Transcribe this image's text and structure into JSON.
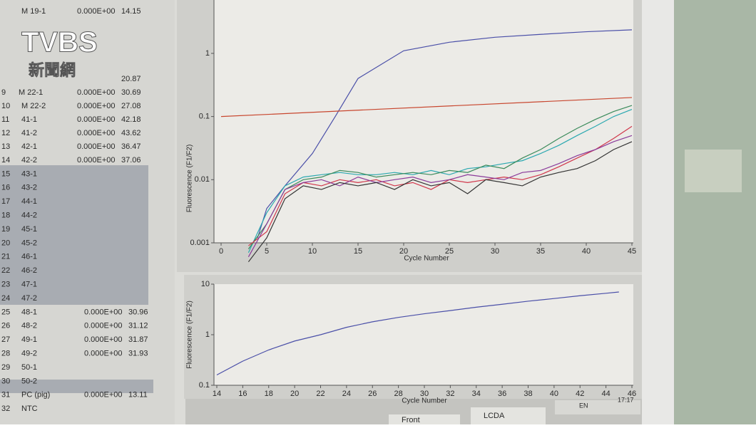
{
  "watermark": {
    "brand": "TVBS",
    "sub": "新聞網"
  },
  "table": {
    "rows": [
      {
        "name": "M 19-1",
        "fluor": "0.000E+00",
        "ct": "14.15"
      },
      {
        "ct": "20.87"
      },
      {
        "id": "10",
        "name": "M 22-2",
        "fluor": "0.000E+00",
        "ct": "27.08"
      },
      {
        "id": "11",
        "name": "41-1",
        "fluor": "0.000E+00",
        "ct": "42.18"
      },
      {
        "id": "12",
        "name": "41-2",
        "fluor": "0.000E+00",
        "ct": "43.62"
      },
      {
        "id": "13",
        "name": "42-1",
        "fluor": "0.000E+00",
        "ct": "36.47"
      },
      {
        "id": "14",
        "name": "42-2",
        "fluor": "0.000E+00",
        "ct": "37.06"
      },
      {
        "id": "15",
        "name": "43-1"
      },
      {
        "id": "16",
        "name": "43-2"
      },
      {
        "id": "17",
        "name": "44-1"
      },
      {
        "id": "18",
        "name": "44-2"
      },
      {
        "id": "19",
        "name": "45-1"
      },
      {
        "id": "20",
        "name": "45-2"
      },
      {
        "id": "21",
        "name": "46-1"
      },
      {
        "id": "22",
        "name": "46-2"
      },
      {
        "id": "23",
        "name": "47-1"
      },
      {
        "id": "24",
        "name": "47-2"
      },
      {
        "id": "25",
        "name": "48-1",
        "fluor": "0.000E+00",
        "ct": "30.96"
      },
      {
        "id": "26",
        "name": "48-2",
        "fluor": "0.000E+00",
        "ct": "31.12"
      },
      {
        "id": "27",
        "name": "49-1",
        "fluor": "0.000E+00",
        "ct": "31.87"
      },
      {
        "id": "28",
        "name": "49-2",
        "fluor": "0.000E+00",
        "ct": "31.93"
      },
      {
        "id": "29",
        "name": "50-1"
      },
      {
        "id": "30",
        "name": "50-2"
      },
      {
        "id": "31",
        "name": "PC (pig)",
        "fluor": "0.000E+00",
        "ct": "13.11"
      },
      {
        "id": "32",
        "name": "NTC"
      }
    ],
    "row_ids": [
      "9"
    ],
    "row_names": [
      "M 22-1"
    ],
    "row_fluor": [
      "0.000E+00"
    ],
    "row_ct": [
      "30.69"
    ]
  },
  "chart_data": [
    {
      "type": "line",
      "xlabel": "Cycle Number",
      "ylabel": "Fluorescence (F1/F2)",
      "log_y": true,
      "xlim": [
        0,
        45
      ],
      "xticks": [
        0,
        5,
        10,
        15,
        20,
        25,
        30,
        35,
        40,
        45
      ],
      "ylim": [
        0.001,
        7
      ],
      "yticks": [
        0.001,
        0.01,
        0.1,
        1
      ],
      "series": [
        {
          "color": "#4a4fa8",
          "x": [
            4,
            5,
            7,
            10,
            12.5,
            15,
            20,
            25,
            30,
            35,
            40,
            45
          ],
          "values": [
            0.0012,
            0.0035,
            0.008,
            0.026,
            0.1,
            0.4,
            1.1,
            1.5,
            1.8,
            2.0,
            2.2,
            2.36
          ]
        },
        {
          "color": "#c8462e",
          "x": [
            0,
            45
          ],
          "values": [
            0.1,
            0.2
          ]
        },
        {
          "color": "#2aa8b0",
          "x": [
            3,
            5,
            7,
            9,
            11,
            13,
            15,
            17,
            19,
            21,
            23,
            25,
            27,
            29,
            31,
            33,
            35,
            37,
            39,
            41,
            43,
            45
          ],
          "values": [
            0.0007,
            0.003,
            0.008,
            0.011,
            0.012,
            0.013,
            0.012,
            0.012,
            0.013,
            0.012,
            0.014,
            0.012,
            0.015,
            0.016,
            0.018,
            0.02,
            0.026,
            0.035,
            0.05,
            0.07,
            0.1,
            0.13
          ]
        },
        {
          "color": "#3a8a5a",
          "x": [
            3,
            5,
            7,
            9,
            11,
            13,
            15,
            17,
            19,
            21,
            23,
            25,
            27,
            29,
            31,
            33,
            35,
            37,
            39,
            41,
            43,
            45
          ],
          "values": [
            0.0008,
            0.002,
            0.007,
            0.01,
            0.011,
            0.014,
            0.013,
            0.011,
            0.012,
            0.013,
            0.012,
            0.014,
            0.013,
            0.017,
            0.015,
            0.022,
            0.03,
            0.045,
            0.065,
            0.09,
            0.12,
            0.15
          ]
        },
        {
          "color": "#d0364a",
          "x": [
            3,
            5,
            7,
            9,
            11,
            13,
            15,
            17,
            19,
            21,
            23,
            25,
            27,
            29,
            31,
            33,
            35,
            37,
            39,
            41,
            43,
            45
          ],
          "values": [
            0.0009,
            0.0015,
            0.006,
            0.009,
            0.008,
            0.01,
            0.009,
            0.01,
            0.008,
            0.009,
            0.007,
            0.01,
            0.009,
            0.01,
            0.011,
            0.01,
            0.012,
            0.016,
            0.022,
            0.03,
            0.045,
            0.07
          ]
        },
        {
          "color": "#8a3a9a",
          "x": [
            3,
            5,
            7,
            9,
            11,
            13,
            15,
            17,
            19,
            21,
            23,
            25,
            27,
            29,
            31,
            33,
            35,
            37,
            39,
            41,
            43,
            45
          ],
          "values": [
            0.0006,
            0.002,
            0.007,
            0.009,
            0.01,
            0.008,
            0.011,
            0.009,
            0.01,
            0.011,
            0.009,
            0.01,
            0.012,
            0.011,
            0.01,
            0.013,
            0.014,
            0.018,
            0.024,
            0.03,
            0.04,
            0.05
          ]
        },
        {
          "color": "#333333",
          "x": [
            3,
            5,
            7,
            9,
            11,
            13,
            15,
            17,
            19,
            21,
            23,
            25,
            27,
            29,
            31,
            33,
            35,
            37,
            39,
            41,
            43,
            45
          ],
          "values": [
            0.0005,
            0.0012,
            0.005,
            0.008,
            0.007,
            0.009,
            0.008,
            0.009,
            0.007,
            0.01,
            0.008,
            0.009,
            0.006,
            0.01,
            0.009,
            0.008,
            0.011,
            0.013,
            0.015,
            0.02,
            0.03,
            0.04
          ]
        }
      ]
    },
    {
      "type": "line",
      "xlabel": "Cycle Number",
      "ylabel": "Fluorescence (F1/F2)",
      "log_y": true,
      "xlim": [
        14,
        46
      ],
      "xticks": [
        14,
        16,
        18,
        20,
        22,
        24,
        26,
        28,
        30,
        32,
        34,
        36,
        38,
        40,
        42,
        44,
        46
      ],
      "ylim": [
        0.1,
        10
      ],
      "yticks": [
        0.1,
        1,
        10
      ],
      "series": [
        {
          "color": "#4a4fa8",
          "x": [
            14,
            16,
            18,
            20,
            22,
            24,
            26,
            28,
            30,
            32,
            34,
            36,
            38,
            40,
            42,
            44,
            45
          ],
          "values": [
            0.16,
            0.3,
            0.5,
            0.75,
            1.0,
            1.4,
            1.8,
            2.2,
            2.6,
            3.0,
            3.5,
            4.0,
            4.6,
            5.2,
            5.9,
            6.6,
            7.0
          ]
        }
      ]
    }
  ],
  "taskbar": {
    "items": [
      "Front",
      "LCDA"
    ],
    "tray": [
      "EN"
    ],
    "clock": "17:17"
  }
}
